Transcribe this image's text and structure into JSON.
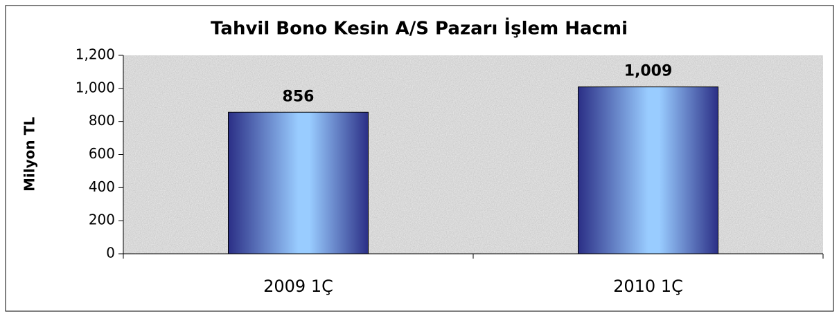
{
  "chart_data": {
    "type": "bar",
    "title": "Tahvil Bono Kesin A/S Pazarı İşlem Hacmi",
    "y_label": "Milyon TL",
    "categories": [
      "2009 1Ç",
      "2010 1Ç"
    ],
    "values": [
      856,
      1009
    ],
    "value_labels": [
      "856",
      "1,009"
    ],
    "color": "#99ccff",
    "ylim": [
      0,
      1200
    ],
    "yticks": [
      0,
      200,
      400,
      600,
      800,
      {
        "value": 1000,
        "label": "1,000"
      },
      {
        "value": 1200,
        "label": "1,200"
      }
    ]
  }
}
